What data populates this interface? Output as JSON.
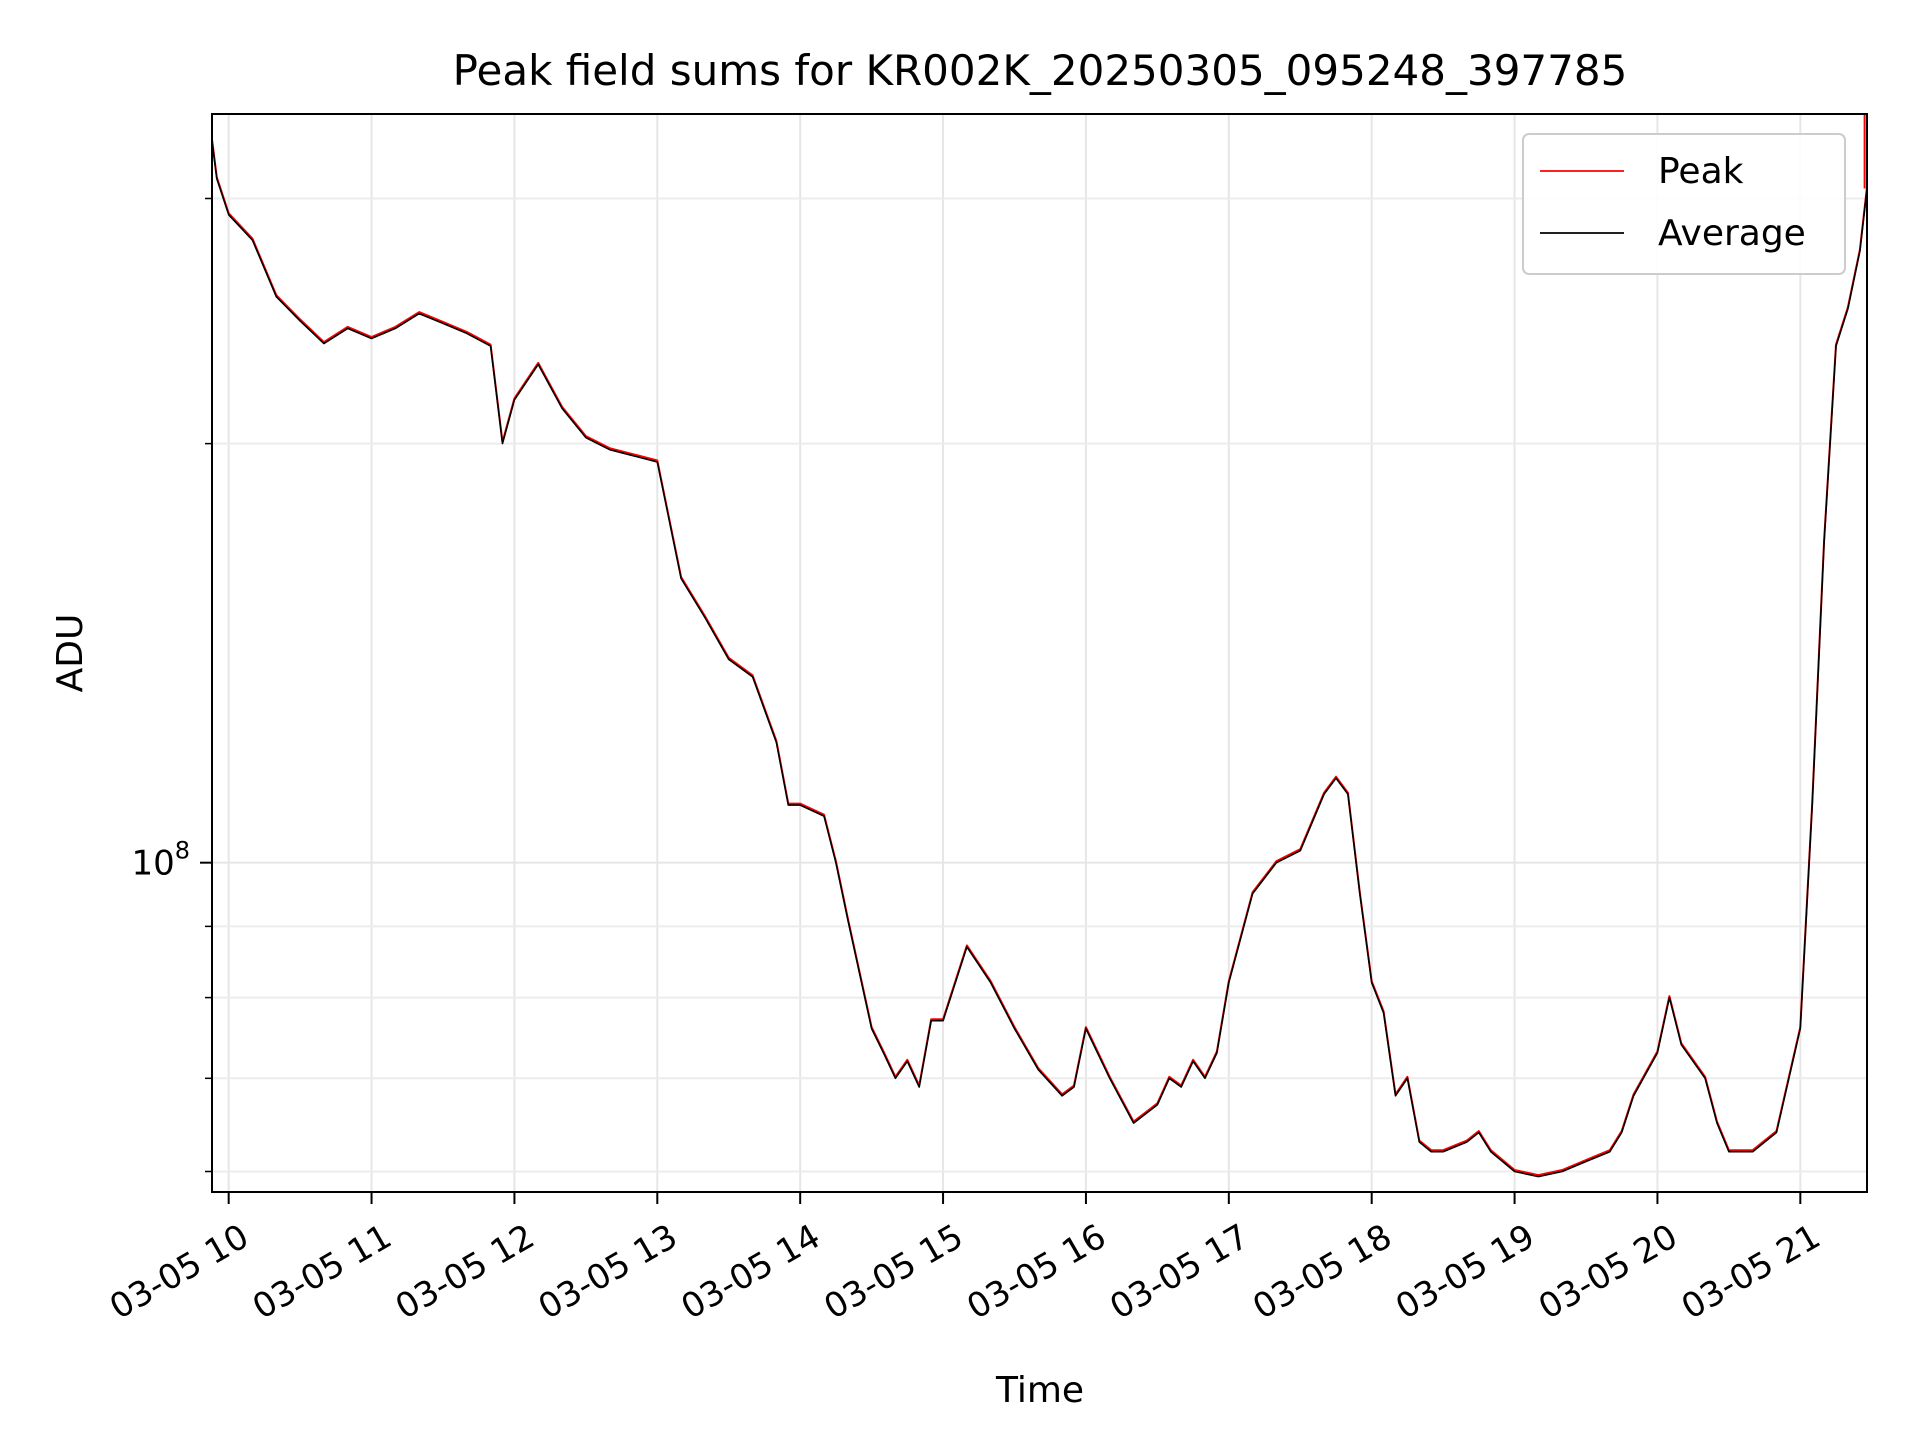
{
  "chart_data": {
    "type": "line",
    "title": "Peak field sums for KR002K_20250305_095248_397785",
    "xlabel": "Time",
    "ylabel": "ADU",
    "y_scale": "log",
    "ytick_labels": [
      {
        "value": 100000000,
        "base": "10",
        "exp": "8"
      }
    ],
    "ylim": [
      58000000,
      345000000
    ],
    "xlim": [
      "2025-03-05 09:53",
      "2025-03-05 21:28"
    ],
    "x_ticks": [
      {
        "t": "2025-03-05 10:00",
        "label": "03-05 10"
      },
      {
        "t": "2025-03-05 11:00",
        "label": "03-05 11"
      },
      {
        "t": "2025-03-05 12:00",
        "label": "03-05 12"
      },
      {
        "t": "2025-03-05 13:00",
        "label": "03-05 13"
      },
      {
        "t": "2025-03-05 14:00",
        "label": "03-05 14"
      },
      {
        "t": "2025-03-05 15:00",
        "label": "03-05 15"
      },
      {
        "t": "2025-03-05 16:00",
        "label": "03-05 16"
      },
      {
        "t": "2025-03-05 17:00",
        "label": "03-05 17"
      },
      {
        "t": "2025-03-05 18:00",
        "label": "03-05 18"
      },
      {
        "t": "2025-03-05 19:00",
        "label": "03-05 19"
      },
      {
        "t": "2025-03-05 20:00",
        "label": "03-05 20"
      },
      {
        "t": "2025-03-05 21:00",
        "label": "03-05 21"
      }
    ],
    "grid": true,
    "legend_position": "top-right",
    "series": [
      {
        "name": "Peak",
        "color": "#ff0000"
      },
      {
        "name": "Average",
        "color": "#000000"
      }
    ],
    "x": [
      "2025-03-05 09:53",
      "2025-03-05 09:55",
      "2025-03-05 10:00",
      "2025-03-05 10:10",
      "2025-03-05 10:20",
      "2025-03-05 10:30",
      "2025-03-05 10:40",
      "2025-03-05 10:50",
      "2025-03-05 11:00",
      "2025-03-05 11:10",
      "2025-03-05 11:20",
      "2025-03-05 11:30",
      "2025-03-05 11:40",
      "2025-03-05 11:50",
      "2025-03-05 11:55",
      "2025-03-05 12:00",
      "2025-03-05 12:10",
      "2025-03-05 12:20",
      "2025-03-05 12:30",
      "2025-03-05 12:40",
      "2025-03-05 12:50",
      "2025-03-05 13:00",
      "2025-03-05 13:10",
      "2025-03-05 13:20",
      "2025-03-05 13:30",
      "2025-03-05 13:40",
      "2025-03-05 13:50",
      "2025-03-05 13:55",
      "2025-03-05 14:00",
      "2025-03-05 14:10",
      "2025-03-05 14:15",
      "2025-03-05 14:20",
      "2025-03-05 14:30",
      "2025-03-05 14:35",
      "2025-03-05 14:40",
      "2025-03-05 14:45",
      "2025-03-05 14:50",
      "2025-03-05 14:55",
      "2025-03-05 15:00",
      "2025-03-05 15:10",
      "2025-03-05 15:20",
      "2025-03-05 15:30",
      "2025-03-05 15:40",
      "2025-03-05 15:50",
      "2025-03-05 15:55",
      "2025-03-05 16:00",
      "2025-03-05 16:10",
      "2025-03-05 16:20",
      "2025-03-05 16:30",
      "2025-03-05 16:35",
      "2025-03-05 16:40",
      "2025-03-05 16:45",
      "2025-03-05 16:50",
      "2025-03-05 16:55",
      "2025-03-05 17:00",
      "2025-03-05 17:10",
      "2025-03-05 17:20",
      "2025-03-05 17:30",
      "2025-03-05 17:40",
      "2025-03-05 17:45",
      "2025-03-05 17:50",
      "2025-03-05 17:55",
      "2025-03-05 18:00",
      "2025-03-05 18:05",
      "2025-03-05 18:10",
      "2025-03-05 18:15",
      "2025-03-05 18:20",
      "2025-03-05 18:25",
      "2025-03-05 18:30",
      "2025-03-05 18:40",
      "2025-03-05 18:45",
      "2025-03-05 18:50",
      "2025-03-05 19:00",
      "2025-03-05 19:10",
      "2025-03-05 19:20",
      "2025-03-05 19:30",
      "2025-03-05 19:40",
      "2025-03-05 19:45",
      "2025-03-05 19:50",
      "2025-03-05 20:00",
      "2025-03-05 20:05",
      "2025-03-05 20:10",
      "2025-03-05 20:20",
      "2025-03-05 20:25",
      "2025-03-05 20:30",
      "2025-03-05 20:40",
      "2025-03-05 20:50",
      "2025-03-05 21:00",
      "2025-03-05 21:05",
      "2025-03-05 21:10",
      "2025-03-05 21:15",
      "2025-03-05 21:20",
      "2025-03-05 21:25",
      "2025-03-05 21:28"
    ],
    "y": [
      330000000,
      310000000,
      292000000,
      280000000,
      255000000,
      245000000,
      236000000,
      242000000,
      238000000,
      242000000,
      248000000,
      244000000,
      240000000,
      235000000,
      200000000,
      215000000,
      228000000,
      212000000,
      202000000,
      198000000,
      196000000,
      194000000,
      160000000,
      150000000,
      140000000,
      136000000,
      122000000,
      110000000,
      110000000,
      108000000,
      100000000,
      91000000,
      76000000,
      73000000,
      70000000,
      72000000,
      69000000,
      77000000,
      77000000,
      87000000,
      82000000,
      76000000,
      71000000,
      68000000,
      69000000,
      76000000,
      70000000,
      65000000,
      67000000,
      70000000,
      69000000,
      72000000,
      70000000,
      73000000,
      82000000,
      95000000,
      100000000,
      102000000,
      112000000,
      115000000,
      112000000,
      95000000,
      82000000,
      78000000,
      68000000,
      70000000,
      63000000,
      62000000,
      62000000,
      63000000,
      64000000,
      62000000,
      60000000,
      59500000,
      60000000,
      61000000,
      62000000,
      64000000,
      68000000,
      73000000,
      80000000,
      74000000,
      70000000,
      65000000,
      62000000,
      62000000,
      64000000,
      76000000,
      110000000,
      170000000,
      235000000,
      250000000,
      275000000,
      305000000
    ],
    "peak_spike": {
      "x": "2025-03-05 21:27",
      "y": 345000000
    }
  }
}
